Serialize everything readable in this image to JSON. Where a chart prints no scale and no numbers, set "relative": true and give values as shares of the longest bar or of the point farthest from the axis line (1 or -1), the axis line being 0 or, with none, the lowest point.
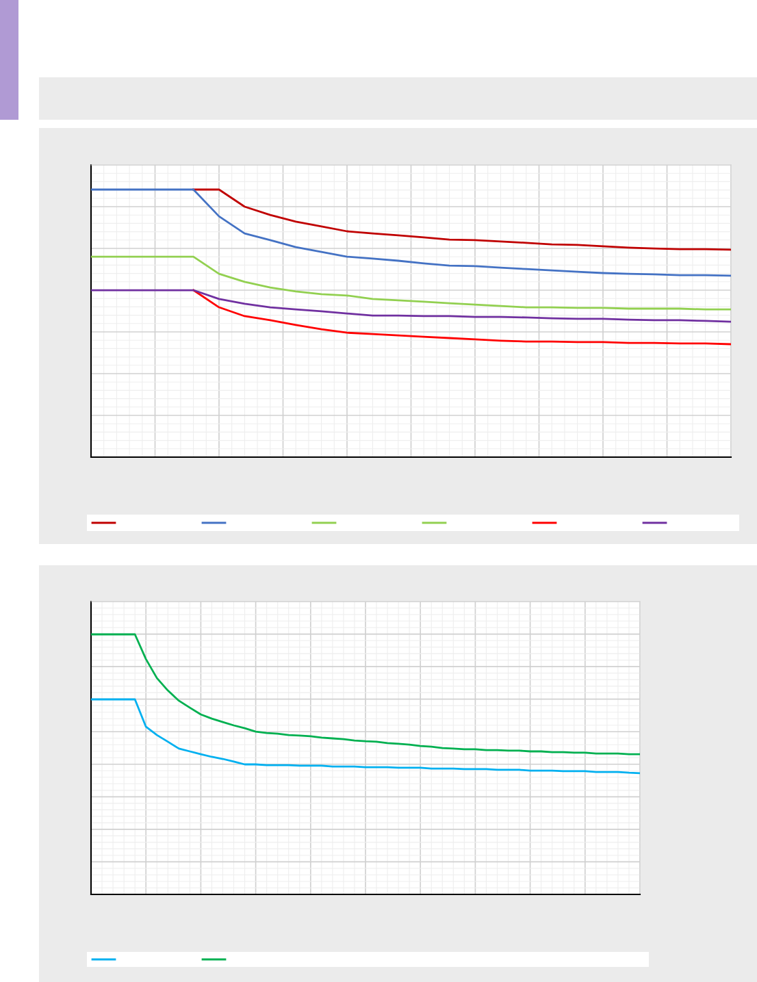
{
  "chart_data": [
    {
      "type": "line",
      "relative": true,
      "grid": true,
      "line_style": "solid",
      "marker": "none",
      "categories": [
        null,
        null,
        null,
        null,
        null,
        null,
        null,
        null,
        null,
        null,
        null,
        null,
        null,
        null,
        null,
        null,
        null,
        null,
        null,
        null,
        null,
        null,
        null,
        null,
        null,
        null
      ],
      "series": [
        {
          "color": "#c00000",
          "values": [
            null,
            null,
            null,
            null,
            1.0,
            1.0,
            0.936,
            0.905,
            0.88,
            0.862,
            0.844,
            0.836,
            0.829,
            0.821,
            0.813,
            0.811,
            0.806,
            0.801,
            0.795,
            0.793,
            0.788,
            0.783,
            0.78,
            0.777,
            0.777,
            0.775
          ]
        },
        {
          "color": "#4472c4",
          "values": [
            1.0,
            1.0,
            1.0,
            1.0,
            1.0,
            0.9,
            0.836,
            0.811,
            0.785,
            0.767,
            0.749,
            0.742,
            0.734,
            0.724,
            0.716,
            0.714,
            0.708,
            0.703,
            0.698,
            0.693,
            0.688,
            0.685,
            0.683,
            0.68,
            0.68,
            0.678
          ]
        },
        {
          "color": "#92d050",
          "values": [
            0.749,
            0.749,
            0.749,
            0.749,
            0.749,
            0.685,
            0.655,
            0.634,
            0.619,
            0.609,
            0.604,
            0.591,
            0.586,
            0.581,
            0.575,
            0.57,
            0.565,
            0.56,
            0.56,
            0.558,
            0.558,
            0.555,
            0.555,
            0.555,
            0.552,
            0.552
          ]
        },
        {
          "color": "#92d050",
          "values": [
            null,
            null,
            null,
            null,
            null,
            null,
            null,
            null,
            null,
            null,
            null,
            null,
            null,
            null,
            null,
            null,
            null,
            null,
            null,
            null,
            null,
            null,
            null,
            null,
            null,
            null
          ]
        },
        {
          "color": "#ff0000",
          "values": [
            null,
            null,
            null,
            null,
            0.624,
            0.56,
            0.527,
            0.512,
            0.494,
            0.478,
            0.465,
            0.46,
            0.455,
            0.45,
            0.445,
            0.44,
            0.435,
            0.432,
            0.432,
            0.43,
            0.43,
            0.427,
            0.427,
            0.425,
            0.425,
            0.422
          ]
        },
        {
          "color": "#7030a0",
          "values": [
            0.624,
            0.624,
            0.624,
            0.624,
            0.624,
            0.591,
            0.573,
            0.56,
            0.552,
            0.545,
            0.537,
            0.529,
            0.529,
            0.527,
            0.527,
            0.524,
            0.524,
            0.522,
            0.519,
            0.517,
            0.517,
            0.514,
            0.512,
            0.512,
            0.509,
            0.506
          ]
        }
      ]
    },
    {
      "type": "line",
      "relative": true,
      "grid": true,
      "line_style": "solid",
      "marker": "none",
      "categories": [
        null,
        null,
        null,
        null,
        null,
        null,
        null,
        null,
        null,
        null,
        null,
        null,
        null,
        null,
        null,
        null,
        null,
        null,
        null,
        null,
        null,
        null,
        null,
        null,
        null,
        null,
        null,
        null,
        null,
        null,
        null,
        null,
        null,
        null,
        null,
        null,
        null,
        null,
        null,
        null,
        null,
        null,
        null,
        null,
        null,
        null,
        null,
        null,
        null,
        null,
        null
      ],
      "series": [
        {
          "color": "#00b0f0",
          "values": [
            0.75,
            0.75,
            0.75,
            0.75,
            0.75,
            0.645,
            0.613,
            0.587,
            0.561,
            0.55,
            0.539,
            0.529,
            0.521,
            0.511,
            0.5,
            0.5,
            0.497,
            0.497,
            0.497,
            0.495,
            0.495,
            0.495,
            0.492,
            0.492,
            0.492,
            0.489,
            0.489,
            0.489,
            0.487,
            0.487,
            0.487,
            0.484,
            0.484,
            0.484,
            0.482,
            0.482,
            0.482,
            0.479,
            0.479,
            0.479,
            0.476,
            0.476,
            0.476,
            0.474,
            0.474,
            0.474,
            0.471,
            0.471,
            0.471,
            0.468,
            0.466
          ]
        },
        {
          "color": "#00b050",
          "values": [
            1.0,
            1.0,
            1.0,
            1.0,
            1.0,
            0.905,
            0.832,
            0.784,
            0.745,
            0.718,
            0.692,
            0.676,
            0.663,
            0.65,
            0.639,
            0.626,
            0.621,
            0.618,
            0.613,
            0.611,
            0.608,
            0.603,
            0.6,
            0.597,
            0.592,
            0.589,
            0.587,
            0.582,
            0.579,
            0.576,
            0.571,
            0.568,
            0.563,
            0.561,
            0.558,
            0.558,
            0.555,
            0.555,
            0.553,
            0.553,
            0.55,
            0.55,
            0.547,
            0.547,
            0.545,
            0.545,
            0.542,
            0.542,
            0.542,
            0.539,
            0.539
          ]
        }
      ]
    }
  ]
}
